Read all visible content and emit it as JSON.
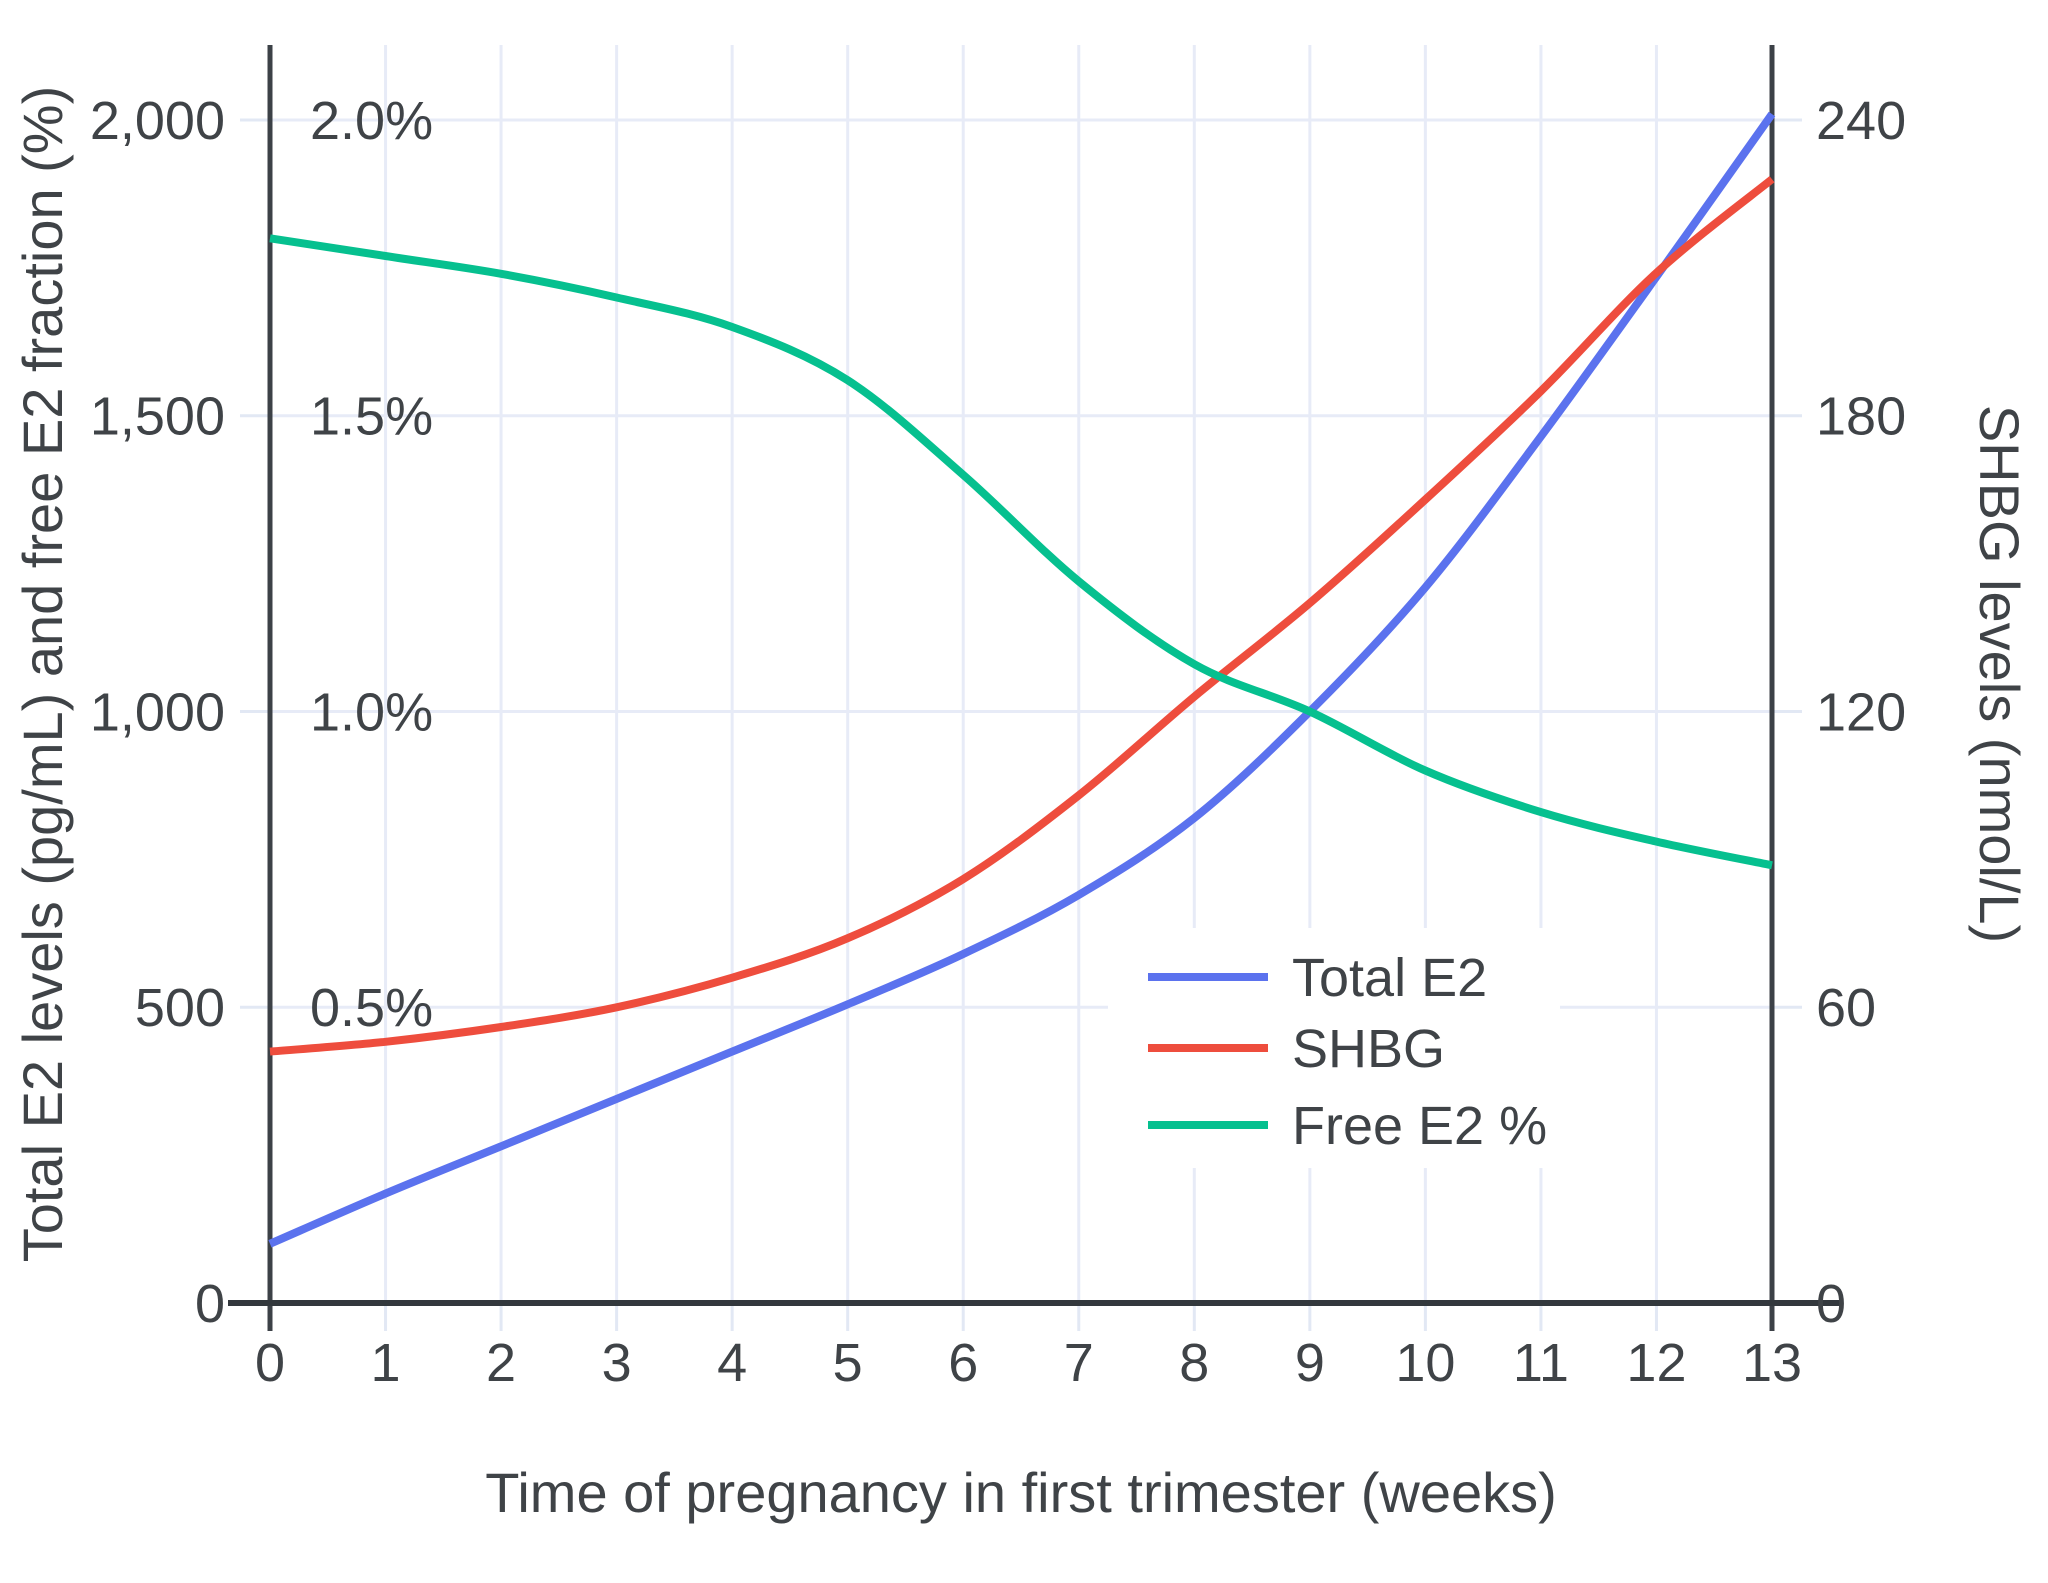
{
  "figure": {
    "background": "#ffffff",
    "text_color": "#3f4347",
    "gridline_color": "#e7ebf7",
    "axis_color": "#3c4147"
  },
  "chart_data": {
    "type": "line",
    "title": "",
    "xlabel": "Time of pregnancy in first trimester (weeks)",
    "x": [
      0,
      1,
      2,
      3,
      4,
      5,
      6,
      7,
      8,
      9,
      10,
      11,
      12,
      13
    ],
    "x_tick_labels": [
      "0",
      "1",
      "2",
      "3",
      "4",
      "5",
      "6",
      "7",
      "8",
      "9",
      "10",
      "11",
      "12",
      "13"
    ],
    "xlim": [
      0,
      13
    ],
    "grid": true,
    "left_axis": {
      "label": "Total E2 levels (pg/mL) and free E2 fraction (%)",
      "range": [
        0,
        2000
      ],
      "tick_values": [
        0,
        500,
        1000,
        1500,
        2000
      ],
      "tick_labels": [
        "0",
        "500",
        "1,000",
        "1,500",
        "2,000"
      ]
    },
    "percent_axis": {
      "note": "inner labels sharing left axis scale, 2.0% = 2000",
      "range_percent": [
        0,
        2.0
      ],
      "tick_values": [
        500,
        1000,
        1500,
        2000
      ],
      "tick_labels": [
        "0.5%",
        "1.0%",
        "1.5%",
        "2.0%"
      ]
    },
    "right_axis": {
      "label": "SHBG levels (nmol/L)",
      "range": [
        0,
        240
      ],
      "tick_values": [
        0,
        60,
        120,
        180,
        240
      ],
      "tick_labels": [
        "0",
        "60",
        "120",
        "180",
        "240"
      ]
    },
    "legend": {
      "position": "inside-bottom-right",
      "background": "#ffffff"
    },
    "series": [
      {
        "name": "Total E2",
        "axis": "left",
        "color": "#5b72ee",
        "unit": "pg/mL",
        "values": [
          100,
          185,
          265,
          345,
          425,
          505,
          590,
          690,
          820,
          1000,
          1210,
          1465,
          1735,
          2010
        ]
      },
      {
        "name": "SHBG",
        "axis": "right",
        "color": "#ee4d3d",
        "unit": "nmol/L",
        "values": [
          51,
          53,
          56,
          60,
          66,
          74,
          86,
          103,
          123,
          142,
          163,
          185,
          209,
          228
        ]
      },
      {
        "name": "Free E2 %",
        "axis": "percent",
        "color": "#06c08f",
        "unit": "%",
        "values": [
          1.8,
          1.77,
          1.74,
          1.7,
          1.65,
          1.56,
          1.4,
          1.22,
          1.08,
          1.0,
          0.9,
          0.83,
          0.78,
          0.74
        ]
      }
    ]
  }
}
